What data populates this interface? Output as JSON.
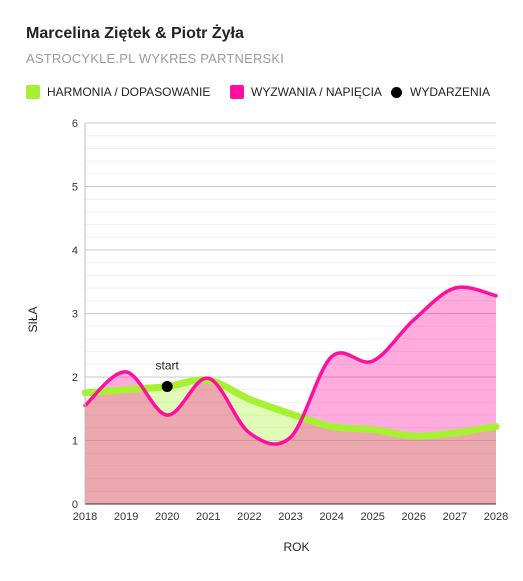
{
  "header": {
    "title": "Marcelina Ziętek & Piotr Żyła",
    "subtitle": "ASTROCYKLE.PL WYKRES PARTNERSKI"
  },
  "legend": [
    {
      "label": "HARMONIA / DOPASOWANIE",
      "color": "#a6f232",
      "shape": "rounded-square"
    },
    {
      "label": "WYZWANIA / NAPIĘCIA",
      "color": "#ff0fa0",
      "shape": "rounded-square"
    },
    {
      "label": "WYDARZENIA",
      "color": "#000000",
      "shape": "circle"
    }
  ],
  "chart_data": {
    "type": "area",
    "title": "Marcelina Ziętek & Piotr Żyła",
    "subtitle": "ASTROCYKLE.PL WYKRES PARTNERSKI",
    "xlabel": "ROK",
    "ylabel": "SIŁA",
    "xlim": [
      2018,
      2028
    ],
    "ylim": [
      0,
      6
    ],
    "x_ticks": [
      2018,
      2019,
      2020,
      2021,
      2022,
      2023,
      2024,
      2025,
      2026,
      2027,
      2028
    ],
    "y_ticks": [
      0,
      1,
      2,
      3,
      4,
      5,
      6
    ],
    "grid": true,
    "legend_position": "top",
    "series": [
      {
        "name": "HARMONIA / DOPASOWANIE",
        "color": "#a6f232",
        "x": [
          2018,
          2019,
          2020,
          2021,
          2022,
          2023,
          2024,
          2025,
          2026,
          2027,
          2028
        ],
        "values": [
          1.75,
          1.8,
          1.85,
          1.95,
          1.65,
          1.42,
          1.22,
          1.17,
          1.07,
          1.12,
          1.22
        ]
      },
      {
        "name": "WYZWANIA / NAPIĘCIA",
        "color": "#ff0fa0",
        "x": [
          2018,
          2019,
          2020,
          2021,
          2022,
          2023,
          2024,
          2025,
          2026,
          2027,
          2028
        ],
        "values": [
          1.55,
          2.08,
          1.4,
          1.98,
          1.12,
          1.05,
          2.32,
          2.25,
          2.9,
          3.4,
          3.28
        ]
      }
    ],
    "events": [
      {
        "x": 2020,
        "y": 1.85,
        "label": "start",
        "color": "#000000"
      }
    ]
  }
}
